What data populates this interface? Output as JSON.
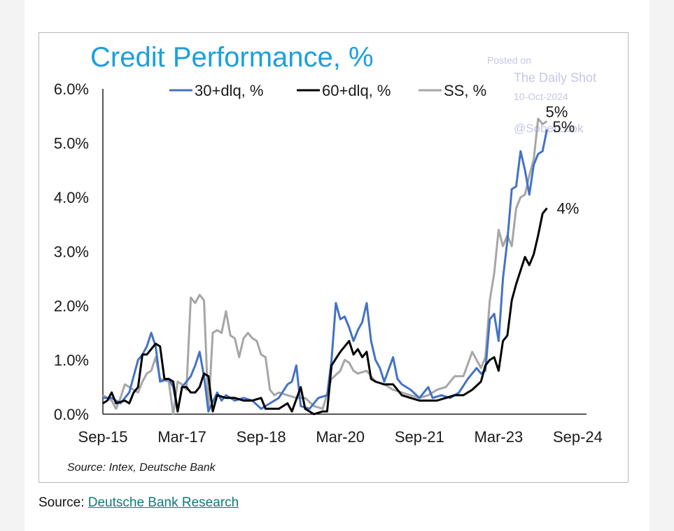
{
  "footer": {
    "label": "Source: ",
    "link_text": "Deutsche Bank Research"
  },
  "watermark": {
    "posted": "Posted on",
    "site": "The Daily Shot",
    "date": "10-Oct-2024",
    "handle": "@SoberLook"
  },
  "colors": {
    "title": "#1aa0dc",
    "series_30": "#4472c4",
    "series_60": "#000000",
    "series_ss": "#a6a6a6",
    "watermark": "#c4c6e6",
    "link": "#0b7b78"
  },
  "chart_data": {
    "type": "line",
    "title": "Credit Performance, %",
    "source": "Source: Intex, Deutsche Bank",
    "xlabel": "",
    "ylabel": "",
    "ylim": [
      0,
      6
    ],
    "y_ticks": [
      0,
      1,
      2,
      3,
      4,
      5,
      6
    ],
    "y_tick_labels": [
      "0.0%",
      "1.0%",
      "2.0%",
      "3.0%",
      "4.0%",
      "5.0%",
      "6.0%"
    ],
    "x_ticks": [
      0,
      18,
      36,
      54,
      72,
      90,
      108
    ],
    "x_tick_labels": [
      "Sep-15",
      "Mar-17",
      "Sep-18",
      "Mar-20",
      "Sep-21",
      "Mar-23",
      "Sep-24"
    ],
    "x_range": [
      0,
      110
    ],
    "x_unit": "months since Sep-2015",
    "grid": false,
    "legend_position": "top",
    "series": [
      {
        "name": "30+dlq, %",
        "end_label": "5%",
        "points": [
          [
            0,
            0.3
          ],
          [
            2,
            0.3
          ],
          [
            4,
            0.2
          ],
          [
            6,
            0.4
          ],
          [
            8,
            1.0
          ],
          [
            9,
            1.1
          ],
          [
            10,
            1.25
          ],
          [
            11,
            1.5
          ],
          [
            12,
            1.25
          ],
          [
            13,
            0.6
          ],
          [
            15,
            0.65
          ],
          [
            16,
            0.5
          ],
          [
            17,
            0.05
          ],
          [
            18,
            0.5
          ],
          [
            20,
            0.7
          ],
          [
            21,
            0.9
          ],
          [
            22,
            1.15
          ],
          [
            23,
            0.7
          ],
          [
            24,
            0.05
          ],
          [
            26,
            0.4
          ],
          [
            27,
            0.25
          ],
          [
            28,
            0.35
          ],
          [
            30,
            0.25
          ],
          [
            32,
            0.3
          ],
          [
            34,
            0.25
          ],
          [
            36,
            0.1
          ],
          [
            38,
            0.2
          ],
          [
            40,
            0.3
          ],
          [
            42,
            0.55
          ],
          [
            43,
            0.6
          ],
          [
            44,
            0.9
          ],
          [
            45,
            0.15
          ],
          [
            47,
            0.1
          ],
          [
            49,
            0.3
          ],
          [
            51,
            0.35
          ],
          [
            52,
            1.0
          ],
          [
            53,
            2.05
          ],
          [
            54,
            1.75
          ],
          [
            55,
            1.8
          ],
          [
            56,
            1.6
          ],
          [
            57,
            1.35
          ],
          [
            58,
            1.55
          ],
          [
            59,
            1.7
          ],
          [
            60,
            2.05
          ],
          [
            61,
            1.35
          ],
          [
            62,
            1.0
          ],
          [
            63,
            0.85
          ],
          [
            64,
            0.6
          ],
          [
            66,
            1.05
          ],
          [
            67,
            0.65
          ],
          [
            68,
            0.55
          ],
          [
            70,
            0.45
          ],
          [
            72,
            0.3
          ],
          [
            74,
            0.5
          ],
          [
            75,
            0.3
          ],
          [
            77,
            0.35
          ],
          [
            79,
            0.3
          ],
          [
            81,
            0.4
          ],
          [
            83,
            0.65
          ],
          [
            85,
            0.85
          ],
          [
            86,
            0.75
          ],
          [
            87,
            0.8
          ],
          [
            88,
            1.75
          ],
          [
            89,
            1.85
          ],
          [
            90,
            1.35
          ],
          [
            91,
            2.5
          ],
          [
            92,
            3.2
          ],
          [
            93,
            4.15
          ],
          [
            94,
            4.2
          ],
          [
            95,
            4.85
          ],
          [
            96,
            4.5
          ],
          [
            97,
            4.05
          ],
          [
            98,
            4.6
          ],
          [
            99,
            4.8
          ],
          [
            100,
            4.85
          ],
          [
            101,
            5.25
          ]
        ]
      },
      {
        "name": "60+dlq, %",
        "end_label": "4%",
        "points": [
          [
            0,
            0.2
          ],
          [
            1,
            0.25
          ],
          [
            2,
            0.4
          ],
          [
            3,
            0.2
          ],
          [
            5,
            0.25
          ],
          [
            6,
            0.2
          ],
          [
            7,
            0.4
          ],
          [
            8,
            0.5
          ],
          [
            9,
            1.1
          ],
          [
            10,
            1.1
          ],
          [
            11,
            1.2
          ],
          [
            12,
            1.3
          ],
          [
            13,
            1.25
          ],
          [
            14,
            0.65
          ],
          [
            15,
            0.65
          ],
          [
            16,
            0.6
          ],
          [
            17,
            0.05
          ],
          [
            18,
            0.5
          ],
          [
            19,
            0.5
          ],
          [
            20,
            0.4
          ],
          [
            21,
            0.4
          ],
          [
            22,
            0.5
          ],
          [
            23,
            0.75
          ],
          [
            24,
            0.7
          ],
          [
            25,
            0.05
          ],
          [
            26,
            0.35
          ],
          [
            28,
            0.3
          ],
          [
            30,
            0.3
          ],
          [
            32,
            0.25
          ],
          [
            34,
            0.25
          ],
          [
            36,
            0.3
          ],
          [
            37,
            0.1
          ],
          [
            40,
            0.1
          ],
          [
            42,
            0.2
          ],
          [
            43,
            0.05
          ],
          [
            45,
            0.5
          ],
          [
            46,
            0.1
          ],
          [
            48,
            0.0
          ],
          [
            50,
            0.05
          ],
          [
            51,
            0.05
          ],
          [
            52,
            0.9
          ],
          [
            54,
            1.15
          ],
          [
            56,
            1.35
          ],
          [
            57,
            1.1
          ],
          [
            58,
            1.2
          ],
          [
            59,
            1.05
          ],
          [
            60,
            1.15
          ],
          [
            61,
            0.65
          ],
          [
            62,
            0.6
          ],
          [
            64,
            0.55
          ],
          [
            66,
            0.55
          ],
          [
            67,
            0.45
          ],
          [
            68,
            0.35
          ],
          [
            70,
            0.3
          ],
          [
            72,
            0.25
          ],
          [
            74,
            0.25
          ],
          [
            76,
            0.25
          ],
          [
            78,
            0.3
          ],
          [
            80,
            0.35
          ],
          [
            82,
            0.35
          ],
          [
            84,
            0.45
          ],
          [
            86,
            0.6
          ],
          [
            87,
            0.9
          ],
          [
            88,
            1.0
          ],
          [
            89,
            1.05
          ],
          [
            90,
            0.8
          ],
          [
            91,
            1.35
          ],
          [
            92,
            1.45
          ],
          [
            93,
            2.1
          ],
          [
            94,
            2.4
          ],
          [
            95,
            2.65
          ],
          [
            96,
            2.9
          ],
          [
            97,
            2.75
          ],
          [
            98,
            2.95
          ],
          [
            99,
            3.3
          ],
          [
            100,
            3.7
          ],
          [
            101,
            3.8
          ]
        ]
      },
      {
        "name": "SS, %",
        "end_label": "5%",
        "points": [
          [
            0,
            0.35
          ],
          [
            1,
            0.3
          ],
          [
            2,
            0.25
          ],
          [
            3,
            0.1
          ],
          [
            4,
            0.3
          ],
          [
            5,
            0.55
          ],
          [
            6,
            0.5
          ],
          [
            8,
            0.4
          ],
          [
            9,
            0.6
          ],
          [
            10,
            0.75
          ],
          [
            11,
            0.8
          ],
          [
            12,
            1.05
          ],
          [
            13,
            0.65
          ],
          [
            15,
            0.6
          ],
          [
            16,
            0.0
          ],
          [
            17,
            0.6
          ],
          [
            18,
            0.55
          ],
          [
            19,
            0.45
          ],
          [
            20,
            2.15
          ],
          [
            21,
            2.05
          ],
          [
            22,
            2.2
          ],
          [
            23,
            2.1
          ],
          [
            24,
            0.05
          ],
          [
            25,
            1.5
          ],
          [
            26,
            1.55
          ],
          [
            27,
            1.5
          ],
          [
            28,
            1.9
          ],
          [
            29,
            1.45
          ],
          [
            30,
            1.4
          ],
          [
            31,
            1.05
          ],
          [
            32,
            1.4
          ],
          [
            33,
            1.5
          ],
          [
            34,
            1.4
          ],
          [
            35,
            1.35
          ],
          [
            36,
            1.1
          ],
          [
            37,
            1.05
          ],
          [
            38,
            0.45
          ],
          [
            39,
            0.35
          ],
          [
            40,
            0.4
          ],
          [
            42,
            0.35
          ],
          [
            44,
            0.3
          ],
          [
            46,
            0.3
          ],
          [
            48,
            0.15
          ],
          [
            50,
            0.1
          ],
          [
            52,
            0.65
          ],
          [
            54,
            0.8
          ],
          [
            55,
            1.0
          ],
          [
            56,
            0.95
          ],
          [
            57,
            0.8
          ],
          [
            58,
            0.75
          ],
          [
            60,
            0.8
          ],
          [
            62,
            0.6
          ],
          [
            64,
            0.55
          ],
          [
            66,
            0.45
          ],
          [
            68,
            0.4
          ],
          [
            70,
            0.35
          ],
          [
            72,
            0.3
          ],
          [
            74,
            0.35
          ],
          [
            76,
            0.45
          ],
          [
            78,
            0.5
          ],
          [
            80,
            0.7
          ],
          [
            82,
            0.7
          ],
          [
            84,
            1.15
          ],
          [
            86,
            0.85
          ],
          [
            87,
            1.05
          ],
          [
            88,
            2.1
          ],
          [
            89,
            2.6
          ],
          [
            90,
            3.4
          ],
          [
            91,
            3.1
          ],
          [
            92,
            3.3
          ],
          [
            93,
            3.1
          ],
          [
            94,
            3.8
          ],
          [
            95,
            4.0
          ],
          [
            96,
            4.05
          ],
          [
            97,
            4.4
          ],
          [
            98,
            4.7
          ],
          [
            99,
            5.45
          ],
          [
            100,
            5.35
          ],
          [
            101,
            5.4
          ]
        ]
      }
    ]
  }
}
